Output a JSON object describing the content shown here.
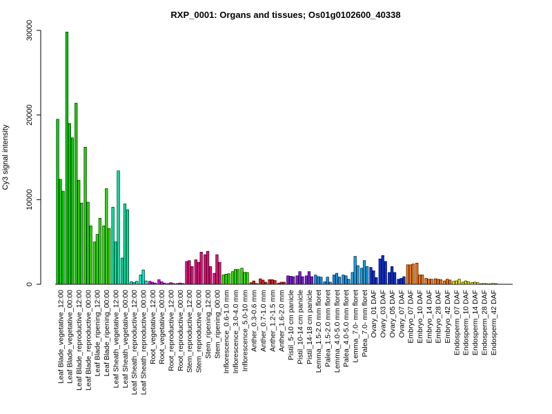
{
  "chart_data": {
    "type": "bar",
    "title": "RXP_0001: Organs and tissues; Os01g0102600_40338",
    "xlabel": "",
    "ylabel": "Cy3 signal intensity",
    "ylim": [
      0,
      30000
    ],
    "yticks": [
      0,
      10000,
      20000,
      30000
    ],
    "grid": false,
    "groups": [
      {
        "label": "Leaf Blade_vegetative_12:00",
        "color": "#00d000",
        "values": [
          19500,
          12400,
          11000
        ]
      },
      {
        "label": "Leaf Blade_vegetative_00:00",
        "color": "#00d000",
        "values": [
          29800,
          19000,
          17300
        ]
      },
      {
        "label": "Leaf Blade_reproductive_12:00",
        "color": "#22d000",
        "values": [
          21400,
          12300,
          9600
        ]
      },
      {
        "label": "Leaf Blade_reproductive_00:00",
        "color": "#22d000",
        "values": [
          16200,
          9700,
          6900
        ]
      },
      {
        "label": "Leaf Blade_ripening_12:00",
        "color": "#33dd11",
        "values": [
          5000,
          5900,
          7800
        ]
      },
      {
        "label": "Leaf Blade_ripening_00:00",
        "color": "#33dd11",
        "values": [
          6900,
          11300,
          6600
        ]
      },
      {
        "label": "Leaf Sheath_vegetative_12:00",
        "color": "#00e0a0",
        "values": [
          9100,
          5000,
          13400
        ]
      },
      {
        "label": "Leaf Sheath_vegetative_00:00",
        "color": "#00e0a0",
        "values": [
          3100,
          9500,
          8800
        ]
      },
      {
        "label": "Leaf Sheath_reproductive_12:00",
        "color": "#00e8c0",
        "values": [
          300,
          200,
          350
        ]
      },
      {
        "label": "Leaf Sheath_reproductive_00:00",
        "color": "#00e8c0",
        "values": [
          1100,
          1700,
          400
        ]
      },
      {
        "label": "Root_vegetative_12:00",
        "color": "#e000e0",
        "values": [
          350,
          250,
          150
        ]
      },
      {
        "label": "Root_vegetative_00:00",
        "color": "#e000e0",
        "values": [
          550,
          300,
          150
        ]
      },
      {
        "label": "Root_reproductive_12:00",
        "color": "#e010c0",
        "values": [
          100,
          200,
          100
        ]
      },
      {
        "label": "Root_reproductive_00:00",
        "color": "#e010c0",
        "values": [
          100,
          150,
          100
        ]
      },
      {
        "label": "Stem_reproductive_12:00",
        "color": "#e0107a",
        "values": [
          2700,
          2800,
          2100
        ]
      },
      {
        "label": "Stem_reproductive_00:00",
        "color": "#e0107a",
        "values": [
          2900,
          2600,
          3800
        ]
      },
      {
        "label": "Stem_ripening_12:00",
        "color": "#e0107a",
        "values": [
          3500,
          3900,
          2100
        ]
      },
      {
        "label": "Stem_ripening_00:00",
        "color": "#e0107a",
        "values": [
          1300,
          3500,
          2600
        ]
      },
      {
        "label": "Inflorescence_0.6-1.0 mm",
        "color": "#33dd00",
        "values": [
          1100,
          1200,
          1250
        ]
      },
      {
        "label": "Inflorescence_3.0-4.0 mm",
        "color": "#33dd00",
        "values": [
          1500,
          1750,
          1750
        ]
      },
      {
        "label": "Inflorescence_5.0-10 mm",
        "color": "#33dd00",
        "values": [
          1900,
          1400,
          1400
        ]
      },
      {
        "label": "Anther_0.3-0.6 mm",
        "color": "#e02020",
        "values": [
          200,
          400,
          100
        ]
      },
      {
        "label": "Anther_0.7-1.0 mm",
        "color": "#e02020",
        "values": [
          650,
          500,
          250
        ]
      },
      {
        "label": "Anther_1.2-1.5 mm",
        "color": "#e02020",
        "values": [
          550,
          550,
          450
        ]
      },
      {
        "label": "Anther_1.6-2.0 mm",
        "color": "#e02020",
        "values": [
          150,
          250,
          250
        ]
      },
      {
        "label": "Pistil_5-10 cm panicle",
        "color": "#7a20d0",
        "values": [
          1000,
          950,
          900
        ]
      },
      {
        "label": "Pistil_10-14 cm panicle",
        "color": "#7a20d0",
        "values": [
          1000,
          1500,
          900
        ]
      },
      {
        "label": "Pistil_14-18 cm panicle",
        "color": "#7a20d0",
        "values": [
          1000,
          1500,
          900
        ]
      },
      {
        "label": "Lemma_1.5-2.0 mm floret",
        "color": "#2090e0",
        "values": [
          1100,
          900,
          850
        ]
      },
      {
        "label": "Palea_1.5-2.0 mm floret",
        "color": "#2090e0",
        "values": [
          300,
          850,
          250
        ]
      },
      {
        "label": "Lemma_4.0-5.0 mm floret",
        "color": "#2090e0",
        "values": [
          1100,
          1300,
          850
        ]
      },
      {
        "label": "Palea_4.0-5.0 mm floret",
        "color": "#2090e0",
        "values": [
          1100,
          1000,
          600
        ]
      },
      {
        "label": "Lemma_7.0- mm floret",
        "color": "#20a0e0",
        "values": [
          1400,
          3300,
          2200
        ]
      },
      {
        "label": "Palea_7.0- mm floret",
        "color": "#20a0e0",
        "values": [
          1900,
          2800,
          2100
        ]
      },
      {
        "label": "Ovary_01 DAF",
        "color": "#1030d0",
        "values": [
          2000,
          1600,
          800
        ]
      },
      {
        "label": "Ovary_03 DAF",
        "color": "#1030d0",
        "values": [
          3000,
          3400,
          2700
        ]
      },
      {
        "label": "Ovary_05 DAF",
        "color": "#1030d0",
        "values": [
          1400,
          2100,
          1400
        ]
      },
      {
        "label": "Ovary_07 DAF",
        "color": "#1030d0",
        "values": [
          600,
          700,
          900
        ]
      },
      {
        "label": "Embryo_07 DAF",
        "color": "#f07818",
        "values": [
          2300,
          2300,
          2400
        ]
      },
      {
        "label": "Embryo_10 DAF",
        "color": "#f07818",
        "values": [
          2500,
          1100,
          1100
        ]
      },
      {
        "label": "Embryo_14 DAF",
        "color": "#f07818",
        "values": [
          700,
          600,
          600
        ]
      },
      {
        "label": "Embryo_28 DAF",
        "color": "#f07818",
        "values": [
          650,
          600,
          550
        ]
      },
      {
        "label": "Embryo_42 DAF",
        "color": "#f07818",
        "values": [
          400,
          600,
          500
        ]
      },
      {
        "label": "Endosperm_07 DAF",
        "color": "#e0e000",
        "values": [
          350,
          400,
          600
        ]
      },
      {
        "label": "Endosperm_10 DAF",
        "color": "#e0e000",
        "values": [
          250,
          400,
          300
        ]
      },
      {
        "label": "Endosperm_14 DAF",
        "color": "#e0e000",
        "values": [
          200,
          250,
          200
        ]
      },
      {
        "label": "Endosperm_28 DAF",
        "color": "#e0e000",
        "values": [
          80,
          100,
          80
        ]
      },
      {
        "label": "Endosperm_42 DAF",
        "color": "#e0e000",
        "values": [
          80,
          100,
          80
        ]
      }
    ]
  }
}
